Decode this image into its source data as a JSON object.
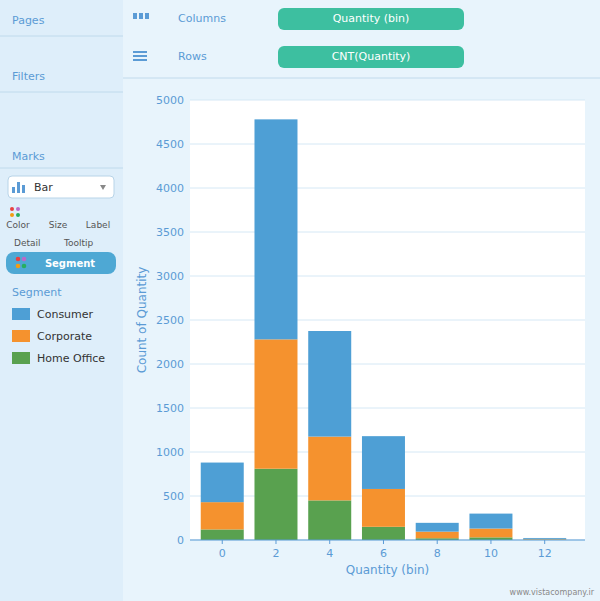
{
  "chart_data": {
    "type": "bar",
    "stacked": true,
    "xlabel": "Quantity (bin)",
    "ylabel": "Count of Quantity",
    "x": [
      0,
      2,
      4,
      6,
      8,
      10,
      12
    ],
    "series": [
      {
        "name": "Consumer",
        "color": "#4e9fd5",
        "values": [
          450,
          2500,
          1200,
          600,
          100,
          170,
          10
        ]
      },
      {
        "name": "Corporate",
        "color": "#f5922e",
        "values": [
          310,
          1470,
          725,
          430,
          75,
          100,
          8
        ]
      },
      {
        "name": "Home Office",
        "color": "#59a14f",
        "values": [
          120,
          810,
          450,
          150,
          20,
          30,
          5
        ]
      }
    ],
    "xlim": [
      -1.2,
      13.5
    ],
    "xticks": [
      0,
      2,
      4,
      6,
      8,
      10,
      12
    ],
    "ylim": [
      0,
      5000
    ],
    "yticks": [
      0,
      500,
      1000,
      1500,
      2000,
      2500,
      3000,
      3500,
      4000,
      4500,
      5000
    ],
    "grid": true,
    "legend": "left",
    "annotations": [
      "Pages",
      "Filters",
      "Marks",
      "Bar",
      "Color",
      "Size",
      "Label",
      "Detail",
      "Tooltip",
      "Segment",
      "Segment",
      "Columns",
      "Quantity (bin)",
      "Rows",
      "CNT(Quantity)",
      "www.vistacompany.ir"
    ]
  }
}
